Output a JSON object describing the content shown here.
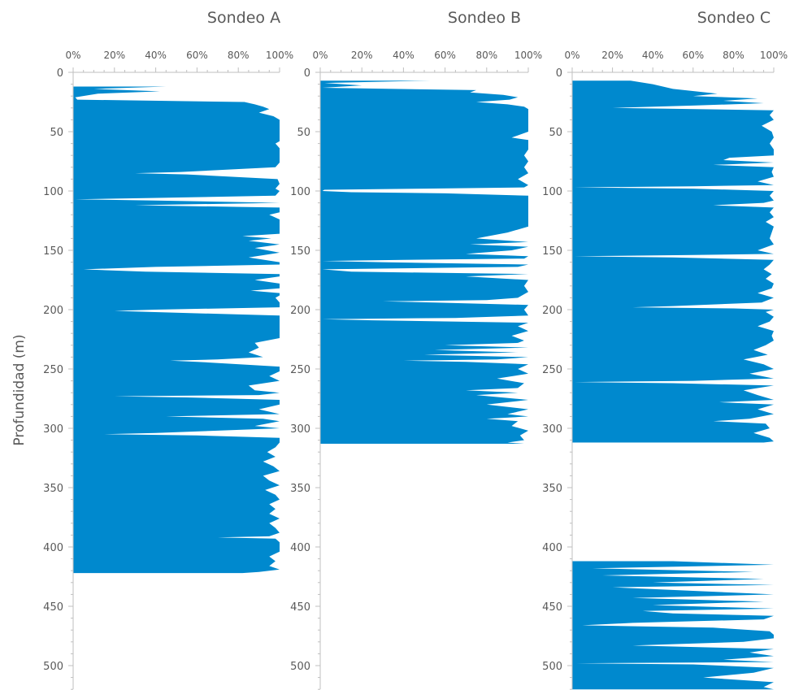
{
  "figure": {
    "ylabel": "Profundidad (m)"
  },
  "chart_data": [
    {
      "type": "area",
      "title": "Sondeo A",
      "orientation": "horizontal-depth",
      "x_ticks": [
        "0%",
        "20%",
        "40%",
        "60%",
        "80%",
        "100%"
      ],
      "y_ticks": [
        0,
        50,
        100,
        150,
        200,
        250,
        300,
        350,
        400,
        450,
        500
      ],
      "xlim": [
        0,
        100
      ],
      "ylim": [
        0,
        520
      ],
      "ylabel": "Profundidad (m)",
      "color": "#0089CE",
      "series": [
        {
          "depth": [
            12,
            14,
            16,
            18,
            21,
            23,
            25,
            27,
            29,
            31,
            34,
            37,
            40,
            44,
            48,
            52,
            58,
            60,
            64,
            68,
            72,
            76,
            80,
            84,
            85,
            86,
            90,
            94,
            98,
            100,
            104,
            106,
            107,
            108,
            110,
            112,
            114,
            116,
            118,
            120,
            124,
            128,
            132,
            136,
            138,
            140,
            142,
            145,
            148,
            152,
            156,
            160,
            162,
            164,
            166,
            168,
            170,
            172,
            175,
            178,
            182,
            184,
            186,
            188,
            190,
            194,
            196,
            198,
            200,
            201,
            202,
            205,
            208,
            212,
            216,
            220,
            224,
            228,
            232,
            236,
            240,
            242,
            243,
            244,
            248,
            252,
            256,
            260,
            264,
            268,
            270,
            272,
            273,
            274,
            276,
            280,
            284,
            288,
            290,
            292,
            294,
            298,
            300,
            302,
            304,
            305,
            306,
            308,
            312,
            316,
            320,
            324,
            328,
            332,
            336,
            340,
            344,
            348,
            352,
            356,
            360,
            364,
            368,
            372,
            376,
            380,
            384,
            388,
            391,
            392,
            393,
            396,
            400,
            404,
            408,
            412,
            416,
            419,
            421,
            422
          ],
          "value": [
            45,
            10,
            42,
            12,
            1,
            2,
            83,
            88,
            92,
            95,
            90,
            97,
            100,
            100,
            100,
            100,
            100,
            98,
            100,
            100,
            100,
            100,
            98,
            52,
            30,
            55,
            99,
            100,
            98,
            100,
            98,
            35,
            1,
            40,
            100,
            30,
            100,
            100,
            100,
            95,
            100,
            100,
            100,
            100,
            82,
            96,
            85,
            100,
            88,
            100,
            85,
            100,
            100,
            40,
            5,
            35,
            100,
            100,
            88,
            100,
            100,
            86,
            100,
            100,
            98,
            100,
            100,
            100,
            40,
            20,
            38,
            100,
            100,
            100,
            100,
            100,
            100,
            88,
            90,
            85,
            92,
            70,
            47,
            60,
            100,
            100,
            95,
            100,
            85,
            88,
            100,
            90,
            20,
            55,
            100,
            100,
            90,
            100,
            45,
            92,
            100,
            88,
            100,
            70,
            40,
            15,
            60,
            100,
            100,
            98,
            94,
            98,
            92,
            97,
            100,
            92,
            95,
            100,
            93,
            98,
            100,
            95,
            98,
            95,
            100,
            95,
            98,
            100,
            95,
            70,
            98,
            100,
            100,
            100,
            95,
            98,
            95,
            100,
            90,
            82
          ]
        }
      ]
    },
    {
      "type": "area",
      "title": "Sondeo B",
      "orientation": "horizontal-depth",
      "x_ticks": [
        "0%",
        "20%",
        "40%",
        "60%",
        "80%",
        "100%"
      ],
      "y_ticks": [
        0,
        50,
        100,
        150,
        200,
        250,
        300,
        350,
        400,
        450,
        500
      ],
      "xlim": [
        0,
        100
      ],
      "ylim": [
        0,
        520
      ],
      "ylabel": "Profundidad (m)",
      "color": "#0089CE",
      "series": [
        {
          "depth": [
            7,
            9,
            11,
            13,
            15,
            17,
            19,
            21,
            23,
            25,
            27,
            29,
            31,
            35,
            40,
            45,
            50,
            55,
            57,
            60,
            65,
            70,
            75,
            80,
            85,
            90,
            95,
            97,
            98,
            99,
            100,
            101,
            102,
            104,
            106,
            110,
            115,
            120,
            125,
            130,
            135,
            140,
            143,
            145,
            147,
            150,
            153,
            155,
            157,
            158,
            159,
            160,
            162,
            164,
            166,
            168,
            170,
            172,
            175,
            180,
            185,
            190,
            192,
            193,
            194,
            196,
            200,
            205,
            207,
            208,
            209,
            211,
            214,
            218,
            222,
            226,
            228,
            230,
            232,
            234,
            236,
            238,
            240,
            242,
            243,
            244,
            246,
            250,
            254,
            258,
            262,
            266,
            268,
            270,
            272,
            276,
            280,
            284,
            288,
            290,
            292,
            294,
            298,
            302,
            306,
            310,
            312,
            313
          ],
          "value": [
            53,
            2,
            20,
            1,
            75,
            72,
            88,
            95,
            91,
            75,
            90,
            98,
            100,
            100,
            100,
            100,
            100,
            92,
            100,
            100,
            100,
            98,
            100,
            98,
            100,
            95,
            100,
            98,
            50,
            2,
            1,
            15,
            60,
            100,
            100,
            100,
            100,
            100,
            100,
            100,
            90,
            75,
            100,
            72,
            100,
            92,
            70,
            100,
            98,
            40,
            1,
            30,
            100,
            95,
            1,
            15,
            100,
            70,
            100,
            98,
            100,
            95,
            80,
            30,
            55,
            100,
            98,
            100,
            65,
            1,
            25,
            100,
            95,
            100,
            92,
            98,
            95,
            60,
            100,
            55,
            95,
            50,
            100,
            85,
            40,
            70,
            100,
            95,
            100,
            85,
            98,
            95,
            70,
            95,
            75,
            100,
            80,
            100,
            90,
            100,
            80,
            95,
            92,
            100,
            96,
            98,
            90,
            98
          ]
        }
      ]
    },
    {
      "type": "area",
      "title": "Sondeo C",
      "orientation": "horizontal-depth",
      "x_ticks": [
        "0%",
        "20%",
        "40%",
        "60%",
        "80%",
        "100%"
      ],
      "y_ticks": [
        0,
        50,
        100,
        150,
        200,
        250,
        300,
        350,
        400,
        450,
        500
      ],
      "xlim": [
        0,
        100
      ],
      "ylim": [
        0,
        520
      ],
      "ylabel": "Profundidad (m)",
      "color": "#0089CE",
      "series": [
        {
          "depth": [
            7,
            10,
            14,
            18,
            20,
            22,
            24,
            26,
            28,
            30,
            32,
            36,
            40,
            45,
            50,
            55,
            60,
            65,
            70,
            72,
            74,
            76,
            78,
            80,
            84,
            88,
            92,
            95,
            96,
            97,
            98,
            100,
            104,
            108,
            110,
            112,
            114,
            118,
            122,
            126,
            130,
            135,
            140,
            145,
            150,
            153,
            154,
            155,
            156,
            158,
            162,
            166,
            170,
            174,
            178,
            182,
            186,
            190,
            194,
            197,
            198,
            199,
            200,
            202,
            206,
            210,
            214,
            218,
            222,
            226,
            230,
            234,
            238,
            242,
            246,
            250,
            254,
            258,
            260,
            261,
            262,
            264,
            268,
            272,
            276,
            278,
            280,
            284,
            288,
            292,
            294,
            296,
            300,
            304,
            308,
            311,
            312
          ],
          "value": [
            29,
            40,
            50,
            72,
            60,
            92,
            75,
            95,
            60,
            20,
            100,
            98,
            100,
            94,
            99,
            100,
            98,
            100,
            100,
            78,
            75,
            100,
            70,
            100,
            99,
            100,
            92,
            100,
            60,
            1,
            60,
            100,
            98,
            100,
            95,
            70,
            100,
            98,
            100,
            96,
            100,
            99,
            98,
            100,
            92,
            100,
            60,
            1,
            50,
            100,
            98,
            95,
            99,
            96,
            100,
            99,
            92,
            100,
            94,
            50,
            30,
            80,
            100,
            96,
            100,
            98,
            92,
            100,
            99,
            100,
            96,
            90,
            97,
            85,
            95,
            100,
            88,
            100,
            60,
            1,
            50,
            100,
            85,
            92,
            100,
            73,
            100,
            92,
            100,
            88,
            70,
            96,
            98,
            90,
            98,
            100,
            95
          ]
        },
        {
          "depth": [
            412,
            415,
            418,
            421,
            424,
            427,
            430,
            432,
            434,
            437,
            440,
            443,
            446,
            449,
            452,
            454,
            456,
            458,
            461,
            464,
            466,
            468,
            471,
            474,
            477,
            480,
            483,
            486,
            489,
            492,
            495,
            497,
            498,
            499,
            502,
            506,
            510,
            514,
            518,
            520
          ],
          "value": [
            50,
            100,
            10,
            90,
            15,
            95,
            40,
            100,
            20,
            60,
            100,
            30,
            95,
            40,
            100,
            35,
            50,
            100,
            95,
            30,
            5,
            70,
            98,
            100,
            100,
            85,
            30,
            100,
            88,
            100,
            75,
            100,
            2,
            60,
            100,
            90,
            65,
            100,
            95,
            100
          ]
        }
      ]
    }
  ]
}
